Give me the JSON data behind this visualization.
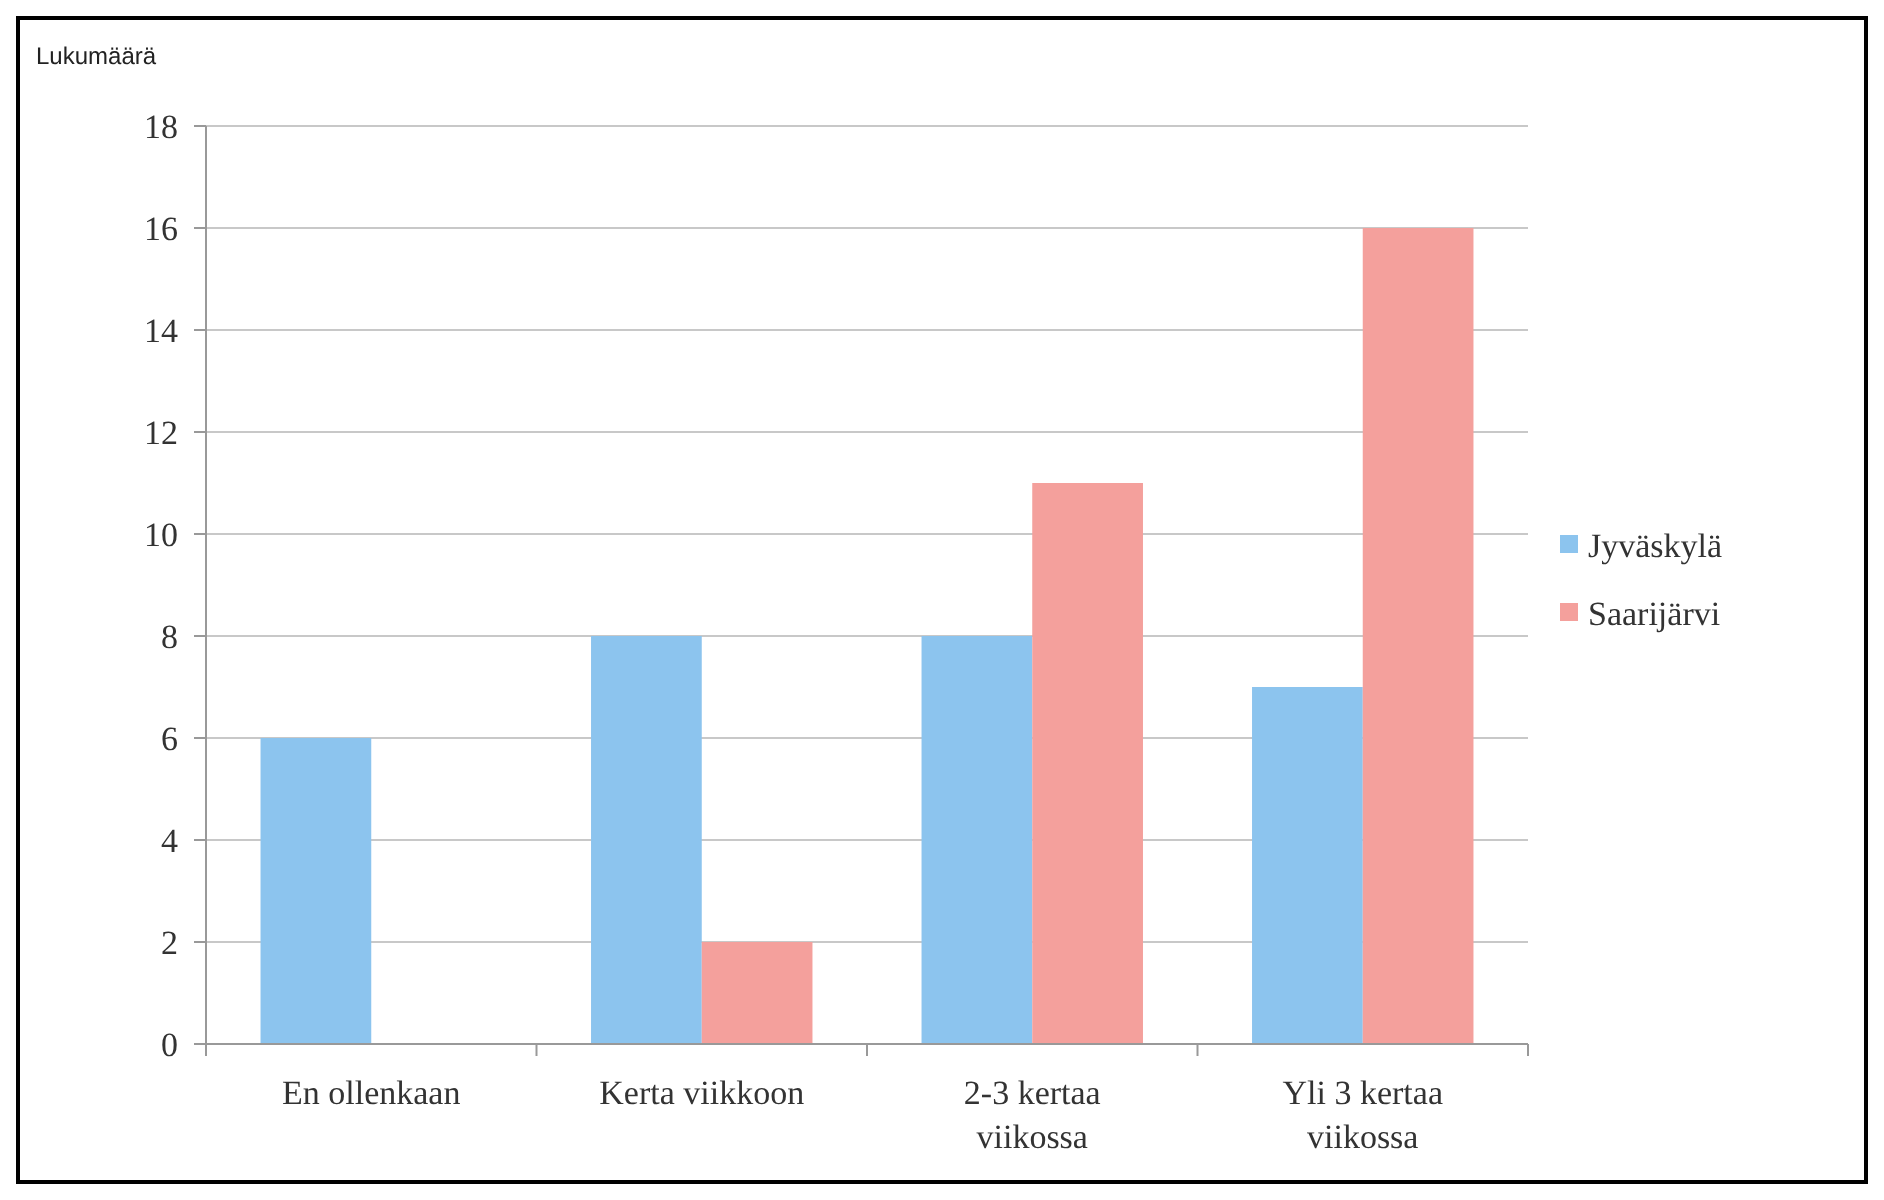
{
  "chart_data": {
    "type": "bar",
    "ylabel": "Lukumäärä",
    "categories": [
      "En ollenkaan",
      "Kerta viikkoon",
      "2-3 kertaa viikossa",
      "Yli 3 kertaa viikossa"
    ],
    "series": [
      {
        "name": "Jyväskylä",
        "color": "#8cc4ee",
        "values": [
          6,
          8,
          8,
          7
        ]
      },
      {
        "name": "Saarijärvi",
        "color": "#f4a09c",
        "values": [
          0,
          2,
          11,
          16
        ]
      }
    ],
    "ylim": [
      0,
      18
    ],
    "yticks": [
      0,
      2,
      4,
      6,
      8,
      10,
      12,
      14,
      16,
      18
    ],
    "grid": "y",
    "legend": "right"
  }
}
